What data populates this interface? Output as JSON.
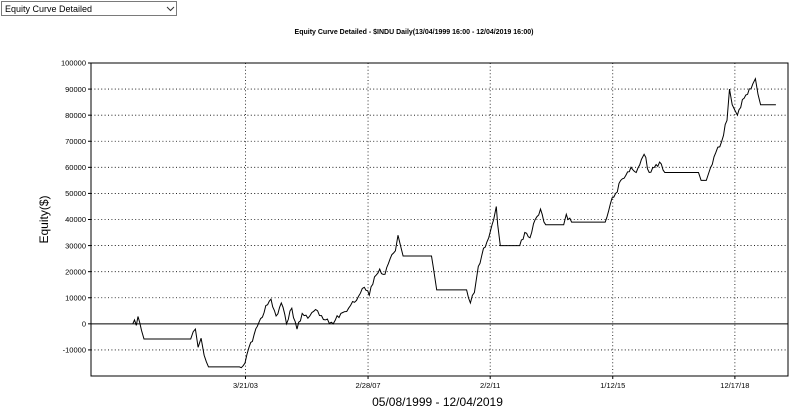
{
  "selector": {
    "selected_value": "Equity Curve Detailed",
    "icon": "chevron-down-icon"
  },
  "chart_data": {
    "type": "line",
    "title": "Equity Curve Detailed - $INDU Daily(13/04/1999 16:00 - 12/04/2019 16:00)",
    "xlabel": "05/08/1999 - 12/04/2019",
    "ylabel": "Equity($)",
    "ylim": [
      -20000,
      100000
    ],
    "y_ticks": [
      100000,
      90000,
      80000,
      70000,
      60000,
      50000,
      40000,
      30000,
      20000,
      10000,
      0,
      -10000
    ],
    "x_ticks": [
      "3/21/03",
      "2/28/07",
      "2/2/11",
      "1/12/15",
      "12/17/18"
    ],
    "xlim": [
      "1998-04-01",
      "2020-09-01"
    ],
    "grid": true,
    "colors": {
      "line": "#000000",
      "grid": "#000000",
      "background": "#ffffff"
    },
    "series": [
      {
        "points": [
          [
            "1999-08-05",
            0
          ],
          [
            "1999-08-25",
            1500
          ],
          [
            "1999-09-15",
            -600
          ],
          [
            "1999-10-05",
            2800
          ],
          [
            "1999-10-25",
            500
          ],
          [
            "1999-11-15",
            -2500
          ],
          [
            "1999-12-15",
            -5800
          ],
          [
            "2001-06-15",
            -5800
          ],
          [
            "2001-07-15",
            -3000
          ],
          [
            "2001-08-10",
            -2000
          ],
          [
            "2001-09-10",
            -9000
          ],
          [
            "2001-10-15",
            -5500
          ],
          [
            "2001-11-20",
            -12000
          ],
          [
            "2002-01-10",
            -16500
          ],
          [
            "2003-01-10",
            -16500
          ],
          [
            "2003-03-15",
            -15000
          ],
          [
            "2003-05-01",
            -9000
          ],
          [
            "2003-07-01",
            -4000
          ],
          [
            "2003-09-15",
            2000
          ],
          [
            "2003-11-15",
            7000
          ],
          [
            "2004-01-15",
            9500
          ],
          [
            "2004-03-15",
            3000
          ],
          [
            "2004-05-15",
            8000
          ],
          [
            "2004-07-15",
            0
          ],
          [
            "2004-09-15",
            6000
          ],
          [
            "2004-11-15",
            -2000
          ],
          [
            "2005-01-15",
            4000
          ],
          [
            "2005-04-15",
            3000
          ],
          [
            "2005-07-15",
            5000
          ],
          [
            "2005-10-15",
            1500
          ],
          [
            "2006-01-15",
            0
          ],
          [
            "2006-04-15",
            4000
          ],
          [
            "2006-07-15",
            6000
          ],
          [
            "2006-10-15",
            9000
          ],
          [
            "2007-01-15",
            14000
          ],
          [
            "2007-03-15",
            11000
          ],
          [
            "2007-05-15",
            18000
          ],
          [
            "2007-07-15",
            21000
          ],
          [
            "2007-09-15",
            19000
          ],
          [
            "2007-11-15",
            25000
          ],
          [
            "2008-01-15",
            28000
          ],
          [
            "2008-02-15",
            34000
          ],
          [
            "2008-03-15",
            30000
          ],
          [
            "2008-04-15",
            26000
          ],
          [
            "2009-03-15",
            26000
          ],
          [
            "2009-05-15",
            13000
          ],
          [
            "2010-05-01",
            13000
          ],
          [
            "2010-06-15",
            8000
          ],
          [
            "2010-08-01",
            12000
          ],
          [
            "2010-09-15",
            22000
          ],
          [
            "2010-11-15",
            29000
          ],
          [
            "2011-01-15",
            33000
          ],
          [
            "2011-03-15",
            40000
          ],
          [
            "2011-04-15",
            45000
          ],
          [
            "2011-05-01",
            38000
          ],
          [
            "2011-06-01",
            30000
          ],
          [
            "2012-01-15",
            30000
          ],
          [
            "2012-03-15",
            35000
          ],
          [
            "2012-05-15",
            33000
          ],
          [
            "2012-07-15",
            40000
          ],
          [
            "2012-09-15",
            44000
          ],
          [
            "2012-11-15",
            38000
          ],
          [
            "2013-06-15",
            38000
          ],
          [
            "2013-07-15",
            42000
          ],
          [
            "2013-09-15",
            39000
          ],
          [
            "2014-10-15",
            39000
          ],
          [
            "2014-12-15",
            46000
          ],
          [
            "2015-02-15",
            50000
          ],
          [
            "2015-04-15",
            55000
          ],
          [
            "2015-06-15",
            57000
          ],
          [
            "2015-08-15",
            60000
          ],
          [
            "2015-10-15",
            58000
          ],
          [
            "2015-12-15",
            63000
          ],
          [
            "2016-01-15",
            65000
          ],
          [
            "2016-03-15",
            58000
          ],
          [
            "2016-05-15",
            60000
          ],
          [
            "2016-07-15",
            62000
          ],
          [
            "2016-09-15",
            58000
          ],
          [
            "2017-10-15",
            58000
          ],
          [
            "2017-11-15",
            55000
          ],
          [
            "2018-01-15",
            55000
          ],
          [
            "2018-02-15",
            58000
          ],
          [
            "2018-04-15",
            64000
          ],
          [
            "2018-07-15",
            70000
          ],
          [
            "2018-09-15",
            78000
          ],
          [
            "2018-10-15",
            90000
          ],
          [
            "2018-11-15",
            84000
          ],
          [
            "2018-12-15",
            82000
          ],
          [
            "2019-01-15",
            80000
          ],
          [
            "2019-03-15",
            86000
          ],
          [
            "2019-05-15",
            88000
          ],
          [
            "2019-07-15",
            92000
          ],
          [
            "2019-08-15",
            94000
          ],
          [
            "2019-09-15",
            88000
          ],
          [
            "2019-10-15",
            84000
          ],
          [
            "2020-04-12",
            84000
          ]
        ]
      }
    ]
  }
}
